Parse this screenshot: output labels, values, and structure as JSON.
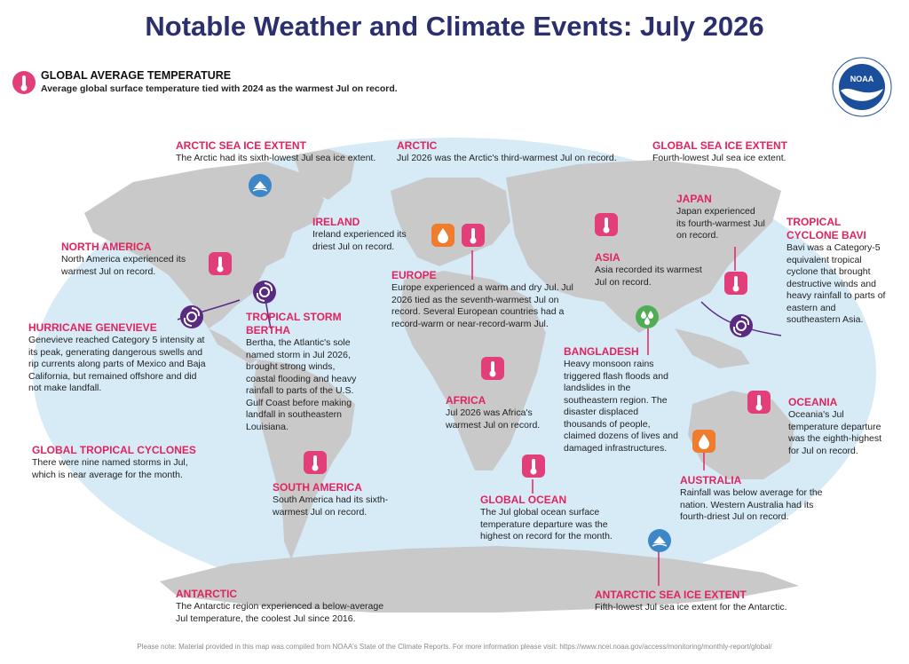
{
  "title": "Notable Weather and Climate Events: July 2026",
  "global": {
    "heading": "GLOBAL AVERAGE TEMPERATURE",
    "body": "Average global surface temperature tied with 2024 as the warmest Jul on record."
  },
  "logo": {
    "text": "NOAA",
    "icon": "noaa-logo"
  },
  "events": {
    "arctic_sea_ice": {
      "heading": "ARCTIC SEA ICE EXTENT",
      "body": "The Arctic had its sixth-lowest Jul sea ice extent."
    },
    "arctic": {
      "heading": "ARCTIC",
      "body": "Jul 2026 was the Arctic's third-warmest Jul on record."
    },
    "global_sea_ice": {
      "heading": "GLOBAL SEA ICE EXTENT",
      "body": "Fourth-lowest Jul sea ice extent."
    },
    "ireland": {
      "heading": "IRELAND",
      "body": "Ireland experienced its driest Jul on record."
    },
    "japan": {
      "heading": "JAPAN",
      "body": "Japan experienced its fourth-warmest Jul on record."
    },
    "bavi": {
      "heading": "TROPICAL CYCLONE BAVI",
      "body": "Bavi was a Category-5 equivalent tropical cyclone that brought destructive winds and heavy rainfall to parts of eastern and southeastern Asia."
    },
    "north_america": {
      "heading": "NORTH AMERICA",
      "body": "North America experienced its warmest Jul on record."
    },
    "europe": {
      "heading": "EUROPE",
      "body": "Europe experienced a warm and dry Jul. Jul 2026 tied as the seventh-warmest Jul on record. Several European countries had a record-warm or near-record-warm Jul."
    },
    "asia": {
      "heading": "ASIA",
      "body": "Asia recorded its warmest Jul on record."
    },
    "genevieve": {
      "heading": "HURRICANE GENEVIEVE",
      "body": "Genevieve reached Category 5 intensity at its peak, generating dangerous swells and rip currents along parts of Mexico and Baja California, but remained offshore and did not make landfall."
    },
    "bertha": {
      "heading": "TROPICAL STORM BERTHA",
      "body": "Bertha, the Atlantic's sole named storm in Jul 2026, brought strong winds, coastal flooding and heavy rainfall to parts of the U.S. Gulf Coast before making landfall in southeastern Louisiana."
    },
    "bangladesh": {
      "heading": "BANGLADESH",
      "body": "Heavy monsoon rains triggered flash floods and landslides in the southeastern region. The disaster displaced thousands of people, claimed dozens of lives and damaged infrastructures."
    },
    "africa": {
      "heading": "AFRICA",
      "body": "Jul 2026 was Africa's warmest Jul on record."
    },
    "oceania": {
      "heading": "OCEANIA",
      "body": "Oceania's Jul temperature departure was the eighth-highest for Jul on record."
    },
    "global_cyclones": {
      "heading": "GLOBAL TROPICAL CYCLONES",
      "body": "There were nine named storms in Jul, which is near average for the month."
    },
    "south_america": {
      "heading": "SOUTH AMERICA",
      "body": "South America had its sixth-warmest Jul on record."
    },
    "global_ocean": {
      "heading": "GLOBAL OCEAN",
      "body": "The Jul global ocean surface temperature departure was the highest on record for the month."
    },
    "australia": {
      "heading": "AUSTRALIA",
      "body": "Rainfall was below average for the nation. Western Australia had its fourth-driest Jul on record."
    },
    "antarctic": {
      "heading": "ANTARCTIC",
      "body": "The Antarctic region experienced a below-average Jul temperature, the coolest Jul since 2016."
    },
    "antarctic_sea_ice": {
      "heading": "ANTARCTIC SEA ICE EXTENT",
      "body": "Fifth-lowest Jul sea ice extent for the Antarctic."
    }
  },
  "footer": "Please note: Material provided in this map was compiled from NOAA's State of the Climate Reports. For more information please visit: https://www.ncei.noaa.gov/access/monitoring/monthly-report/global/",
  "colors": {
    "title": "#2b2f6e",
    "heading": "#e0245e",
    "ocean": "#d7ebf7",
    "land": "#c9c9c9",
    "temperature_icon": "#e23f7a",
    "drought_icon": "#f07c2e",
    "flood_icon": "#4fae55",
    "ice_icon": "#3d86c7",
    "cyclone_icon": "#5a2a82"
  }
}
